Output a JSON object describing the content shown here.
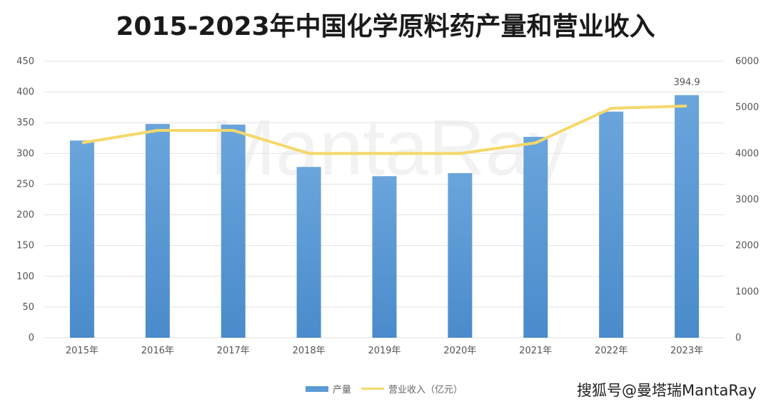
{
  "title": "2015-2023年中国化学原料药产量和营业收入",
  "watermark": "MantaRay",
  "source": "搜狐号@曼塔瑞MantaRay",
  "chart_data": {
    "type": "bar",
    "title": "2015-2023年中国化学原料药产量和营业收入",
    "categories": [
      "2015年",
      "2016年",
      "2017年",
      "2018年",
      "2019年",
      "2020年",
      "2021年",
      "2022年",
      "2023年"
    ],
    "series": [
      {
        "name": "产量",
        "type": "bar",
        "axis": "left",
        "color": "#5b9bd5",
        "values": [
          321,
          348,
          347,
          278,
          263,
          268,
          327,
          368,
          394.9
        ]
      },
      {
        "name": "营业收入（亿元）",
        "type": "line",
        "axis": "right",
        "color": "#f5d86a",
        "values": [
          4230,
          4500,
          4500,
          4000,
          4000,
          4000,
          4230,
          4980,
          5030
        ]
      }
    ],
    "data_labels": [
      {
        "category": "2023年",
        "series": "产量",
        "text": "394.9"
      }
    ],
    "ylim_left": [
      0,
      450
    ],
    "yticks_left": [
      "0",
      "50",
      "100",
      "150",
      "200",
      "250",
      "300",
      "350",
      "400",
      "450"
    ],
    "ylim_right": [
      0,
      6000
    ],
    "yticks_right": [
      "0",
      "1000",
      "2000",
      "3000",
      "4000",
      "5000",
      "6000"
    ],
    "grid": true,
    "legend": "bottom"
  }
}
